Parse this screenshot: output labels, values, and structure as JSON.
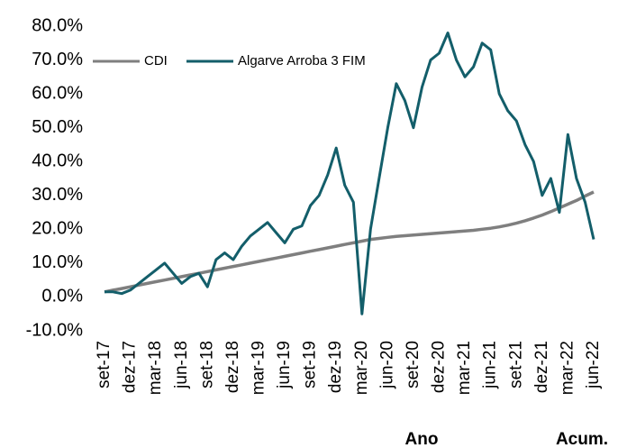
{
  "chart_data": {
    "type": "line",
    "categories": [
      "set-17",
      null,
      null,
      "dez-17",
      null,
      null,
      "mar-18",
      null,
      null,
      "jun-18",
      null,
      null,
      "set-18",
      null,
      null,
      "dez-18",
      null,
      null,
      "mar-19",
      null,
      null,
      "jun-19",
      null,
      null,
      "set-19",
      null,
      null,
      "dez-19",
      null,
      null,
      "mar-20",
      null,
      null,
      "jun-20",
      null,
      null,
      "set-20",
      null,
      null,
      "dez-20",
      null,
      null,
      "mar-21",
      null,
      null,
      "jun-21",
      null,
      null,
      "set-21",
      null,
      null,
      "dez-21",
      null,
      null,
      "mar-22",
      null,
      null,
      "jun-22"
    ],
    "series": [
      {
        "name": "CDI",
        "color": "#7f7f7f",
        "values": [
          1.5,
          2,
          2.5,
          3,
          3.5,
          4,
          4.5,
          5,
          5.5,
          6,
          6.5,
          7,
          7.5,
          8,
          8.5,
          9,
          9.5,
          10,
          10.5,
          11,
          11.5,
          12,
          12.5,
          13,
          13.5,
          14,
          14.5,
          15,
          15.5,
          16,
          16.5,
          17,
          17.3,
          17.6,
          17.9,
          18.1,
          18.3,
          18.5,
          18.7,
          18.9,
          19.1,
          19.3,
          19.5,
          19.7,
          20,
          20.3,
          20.7,
          21.2,
          21.8,
          22.5,
          23.3,
          24.2,
          25.2,
          26.3,
          27.4,
          28.5,
          29.8,
          31
        ]
      },
      {
        "name": "Algarve Arroba 3 FIM",
        "color": "#135e6a",
        "values": [
          1.5,
          1.5,
          1,
          2,
          4,
          6,
          8,
          10,
          7,
          4,
          6,
          7,
          3,
          11,
          13,
          11,
          15,
          18,
          20,
          22,
          19,
          16,
          20,
          21,
          27,
          30,
          36,
          44,
          33,
          28,
          -5,
          20,
          35,
          50,
          63,
          58,
          50,
          62,
          70,
          72,
          78,
          70,
          65,
          68,
          75,
          73,
          60,
          55,
          52,
          45,
          40,
          30,
          35,
          25,
          48,
          35,
          28,
          17
        ]
      }
    ],
    "ylim": [
      -10,
      80
    ],
    "yticks": [
      {
        "value": -10,
        "label": "-10.0%"
      },
      {
        "value": 0,
        "label": "0.0%"
      },
      {
        "value": 10,
        "label": "10.0%"
      },
      {
        "value": 20,
        "label": "20.0%"
      },
      {
        "value": 30,
        "label": "30.0%"
      },
      {
        "value": 40,
        "label": "40.0%"
      },
      {
        "value": 50,
        "label": "50.0%"
      },
      {
        "value": 60,
        "label": "60.0%"
      },
      {
        "value": 70,
        "label": "70.0%"
      },
      {
        "value": 80,
        "label": "80.0%"
      }
    ],
    "annotations": [
      "Ano",
      "Acum."
    ]
  }
}
